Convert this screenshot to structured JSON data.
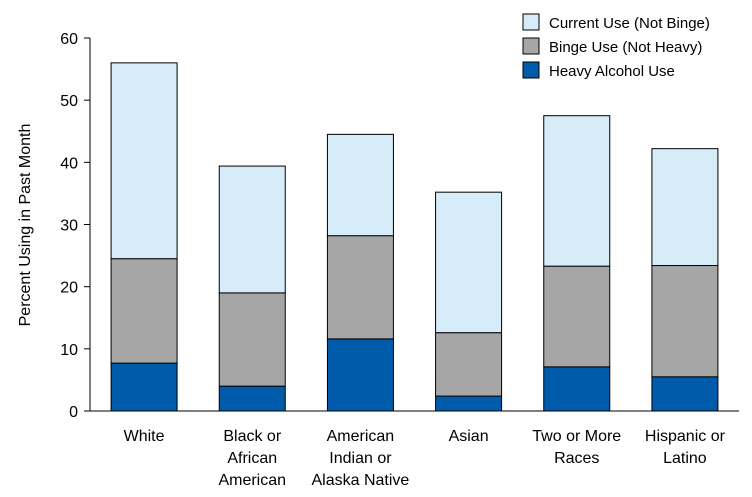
{
  "chart_data": {
    "type": "bar",
    "stacked": true,
    "title": "",
    "xlabel": "",
    "ylabel": "Percent Using in Past Month",
    "ylim": [
      0,
      60
    ],
    "yticks": [
      0,
      10,
      20,
      30,
      40,
      50,
      60
    ],
    "grid": false,
    "legend_position": "top-right",
    "categories": [
      [
        "White"
      ],
      [
        "Black or",
        "African",
        "American"
      ],
      [
        "American",
        "Indian or",
        "Alaska Native"
      ],
      [
        "Asian"
      ],
      [
        "Two or More",
        "Races"
      ],
      [
        "Hispanic or",
        "Latino"
      ]
    ],
    "series": [
      {
        "name": "Heavy Alcohol Use",
        "color": "#005BAA",
        "values": [
          7.7,
          4.0,
          11.6,
          2.4,
          7.1,
          5.5
        ]
      },
      {
        "name": "Binge Use (Not Heavy)",
        "color": "#A6A6A6",
        "values": [
          16.8,
          15.0,
          16.6,
          10.2,
          16.2,
          17.9
        ]
      },
      {
        "name": "Current Use (Not Binge)",
        "color": "#D6ECF8",
        "values": [
          31.5,
          20.4,
          16.3,
          22.6,
          24.2,
          18.8
        ]
      }
    ],
    "legend_order": [
      2,
      1,
      0
    ]
  }
}
